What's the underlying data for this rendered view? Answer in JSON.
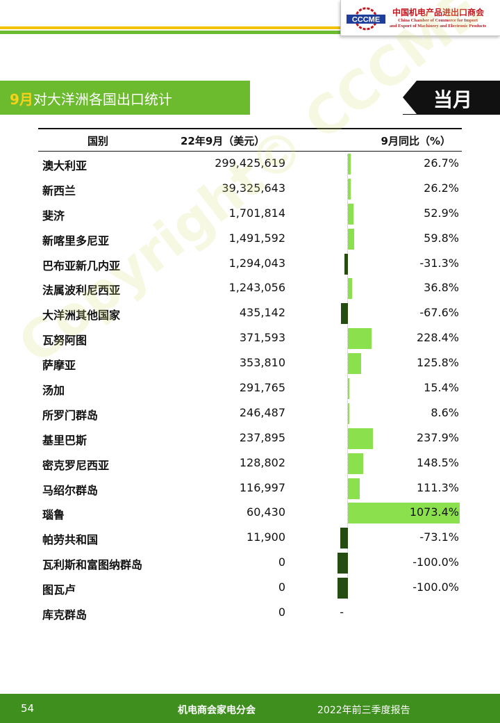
{
  "header": {
    "logo_text": "CCCME",
    "org_cn": "中国机电产品进出口商会",
    "org_en_1": "China Chamber of Commerce for Import",
    "org_en_2": "and Export of Machinery and Electronic Products"
  },
  "title": {
    "month": "9月",
    "text": "对大洋洲各国出口统计"
  },
  "badge": "当月",
  "watermark": "Copyright© CCCME",
  "colors": {
    "green": "#6cbb2f",
    "positive_bar": "#8be04e",
    "negative_bar": "#254d12",
    "footer": "#3f8f1f"
  },
  "table": {
    "headers": {
      "country": "国别",
      "value": "22年9月（美元）",
      "yoy": "9月同比（%）"
    },
    "rows": [
      {
        "country": "澳大利亚",
        "value": "299,425,619",
        "yoy": "26.7%",
        "yoy_num": 26.7
      },
      {
        "country": "新西兰",
        "value": "39,325,643",
        "yoy": "26.2%",
        "yoy_num": 26.2
      },
      {
        "country": "斐济",
        "value": "1,701,814",
        "yoy": "52.9%",
        "yoy_num": 52.9
      },
      {
        "country": "新喀里多尼亚",
        "value": "1,491,592",
        "yoy": "59.8%",
        "yoy_num": 59.8
      },
      {
        "country": "巴布亚新几内亚",
        "value": "1,294,043",
        "yoy": "-31.3%",
        "yoy_num": -31.3
      },
      {
        "country": "法属波利尼西亚",
        "value": "1,243,056",
        "yoy": "36.8%",
        "yoy_num": 36.8
      },
      {
        "country": "大洋洲其他国家",
        "value": "435,142",
        "yoy": "-67.6%",
        "yoy_num": -67.6
      },
      {
        "country": "瓦努阿图",
        "value": "371,593",
        "yoy": "228.4%",
        "yoy_num": 228.4
      },
      {
        "country": "萨摩亚",
        "value": "353,810",
        "yoy": "125.8%",
        "yoy_num": 125.8
      },
      {
        "country": "汤加",
        "value": "291,765",
        "yoy": "15.4%",
        "yoy_num": 15.4
      },
      {
        "country": "所罗门群岛",
        "value": "246,487",
        "yoy": "8.6%",
        "yoy_num": 8.6
      },
      {
        "country": "基里巴斯",
        "value": "237,895",
        "yoy": "237.9%",
        "yoy_num": 237.9
      },
      {
        "country": "密克罗尼西亚",
        "value": "128,802",
        "yoy": "148.5%",
        "yoy_num": 148.5
      },
      {
        "country": "马绍尔群岛",
        "value": "116,997",
        "yoy": "111.3%",
        "yoy_num": 111.3
      },
      {
        "country": "瑙鲁",
        "value": "60,430",
        "yoy": "1073.4%",
        "yoy_num": 1073.4
      },
      {
        "country": "帕劳共和国",
        "value": "11,900",
        "yoy": "-73.1%",
        "yoy_num": -73.1
      },
      {
        "country": "瓦利斯和富图纳群岛",
        "value": "0",
        "yoy": "-100.0%",
        "yoy_num": -100.0
      },
      {
        "country": "图瓦卢",
        "value": "0",
        "yoy": "-100.0%",
        "yoy_num": -100.0
      },
      {
        "country": "库克群岛",
        "value": "0",
        "yoy": "-",
        "yoy_num": null
      }
    ]
  },
  "footer": {
    "page": "54",
    "org": "机电商会家电分会",
    "report": "2022年前三季度报告"
  }
}
